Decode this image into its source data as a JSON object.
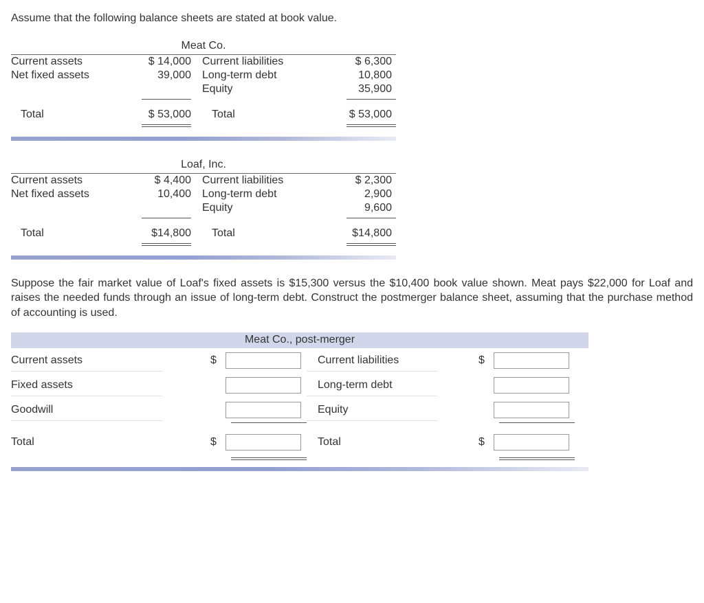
{
  "intro": "Assume that the following balance sheets are stated at book value.",
  "sheet1": {
    "title": "Meat Co.",
    "assets": [
      {
        "label": "Current assets",
        "value": "$ 14,000"
      },
      {
        "label": "Net fixed assets",
        "value": "39,000"
      }
    ],
    "liab": [
      {
        "label": "Current liabilities",
        "value": "$  6,300"
      },
      {
        "label": "Long-term debt",
        "value": "10,800"
      },
      {
        "label": "Equity",
        "value": "35,900"
      }
    ],
    "total_label": "Total",
    "total_assets": "$ 53,000",
    "total_liab": "$ 53,000"
  },
  "sheet2": {
    "title": "Loaf, Inc.",
    "assets": [
      {
        "label": "Current assets",
        "value": "$  4,400"
      },
      {
        "label": "Net fixed assets",
        "value": "10,400"
      }
    ],
    "liab": [
      {
        "label": "Current liabilities",
        "value": "$  2,300"
      },
      {
        "label": "Long-term debt",
        "value": "2,900"
      },
      {
        "label": "Equity",
        "value": "9,600"
      }
    ],
    "total_label": "Total",
    "total_assets": "$14,800",
    "total_liab": "$14,800"
  },
  "paragraph": "Suppose the fair market value of Loaf's fixed assets is $15,300 versus the $10,400 book value shown. Meat pays $22,000 for Loaf and raises the needed funds through an issue of long-term debt. Construct the postmerger balance sheet, assuming that the purchase method of accounting is used.",
  "post": {
    "title": "Meat Co., post-merger",
    "rows_left": [
      {
        "label": "Current assets",
        "dollar": "$"
      },
      {
        "label": "Fixed assets",
        "dollar": ""
      },
      {
        "label": "Goodwill",
        "dollar": ""
      }
    ],
    "rows_right": [
      {
        "label": "Current liabilities",
        "dollar": "$"
      },
      {
        "label": "Long-term debt",
        "dollar": ""
      },
      {
        "label": "Equity",
        "dollar": ""
      }
    ],
    "total_label": "Total",
    "dollar": "$"
  }
}
